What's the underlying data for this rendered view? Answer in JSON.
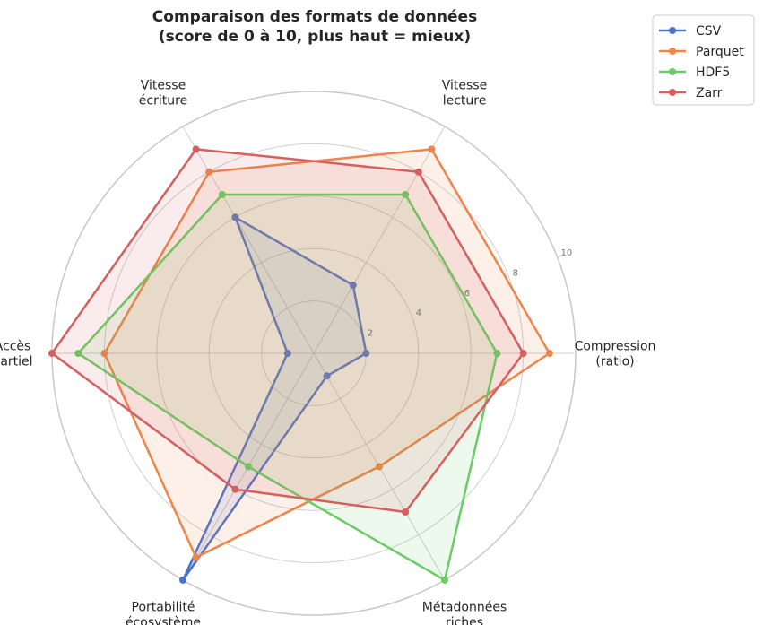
{
  "chart_data": {
    "type": "radar",
    "title_lines": [
      "Comparaison des formats de données",
      "(score de 0 à 10, plus haut = mieux)"
    ],
    "axes": [
      [
        "Compression",
        "(ratio)"
      ],
      [
        "Vitesse",
        "lecture"
      ],
      [
        "Vitesse",
        "écriture"
      ],
      [
        "Accès",
        "partiel"
      ],
      [
        "Portabilité",
        "écosystème"
      ],
      [
        "Métadonnées",
        "riches"
      ]
    ],
    "rlim": [
      0,
      10
    ],
    "rticks": [
      2,
      4,
      6,
      8,
      10
    ],
    "grid": true,
    "legend_position": "top-right",
    "series": [
      {
        "name": "CSV",
        "color": "#4C72D0",
        "values": [
          2,
          3,
          6,
          1,
          10,
          1
        ]
      },
      {
        "name": "Parquet",
        "color": "#EE854A",
        "values": [
          9,
          9,
          8,
          8,
          9,
          5
        ]
      },
      {
        "name": "HDF5",
        "color": "#6ACC64",
        "values": [
          7,
          7,
          7,
          9,
          5,
          10
        ]
      },
      {
        "name": "Zarr",
        "color": "#D65F5F",
        "values": [
          8,
          8,
          9,
          10,
          6,
          7
        ]
      }
    ]
  }
}
